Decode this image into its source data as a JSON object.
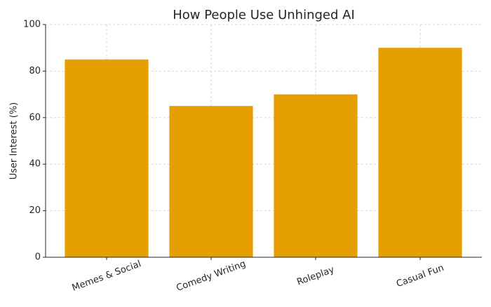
{
  "chart_data": {
    "type": "bar",
    "title": "How People Use Unhinged AI",
    "y_label": "User Interest (%)",
    "categories": [
      "Memes & Social",
      "Comedy Writing",
      "Roleplay",
      "Casual Fun"
    ],
    "values": [
      85,
      65,
      70,
      90
    ],
    "color": "#e69f00",
    "ylim": [
      0,
      100
    ],
    "yticks": [
      0,
      20,
      40,
      60,
      80,
      100
    ],
    "grid": true
  }
}
